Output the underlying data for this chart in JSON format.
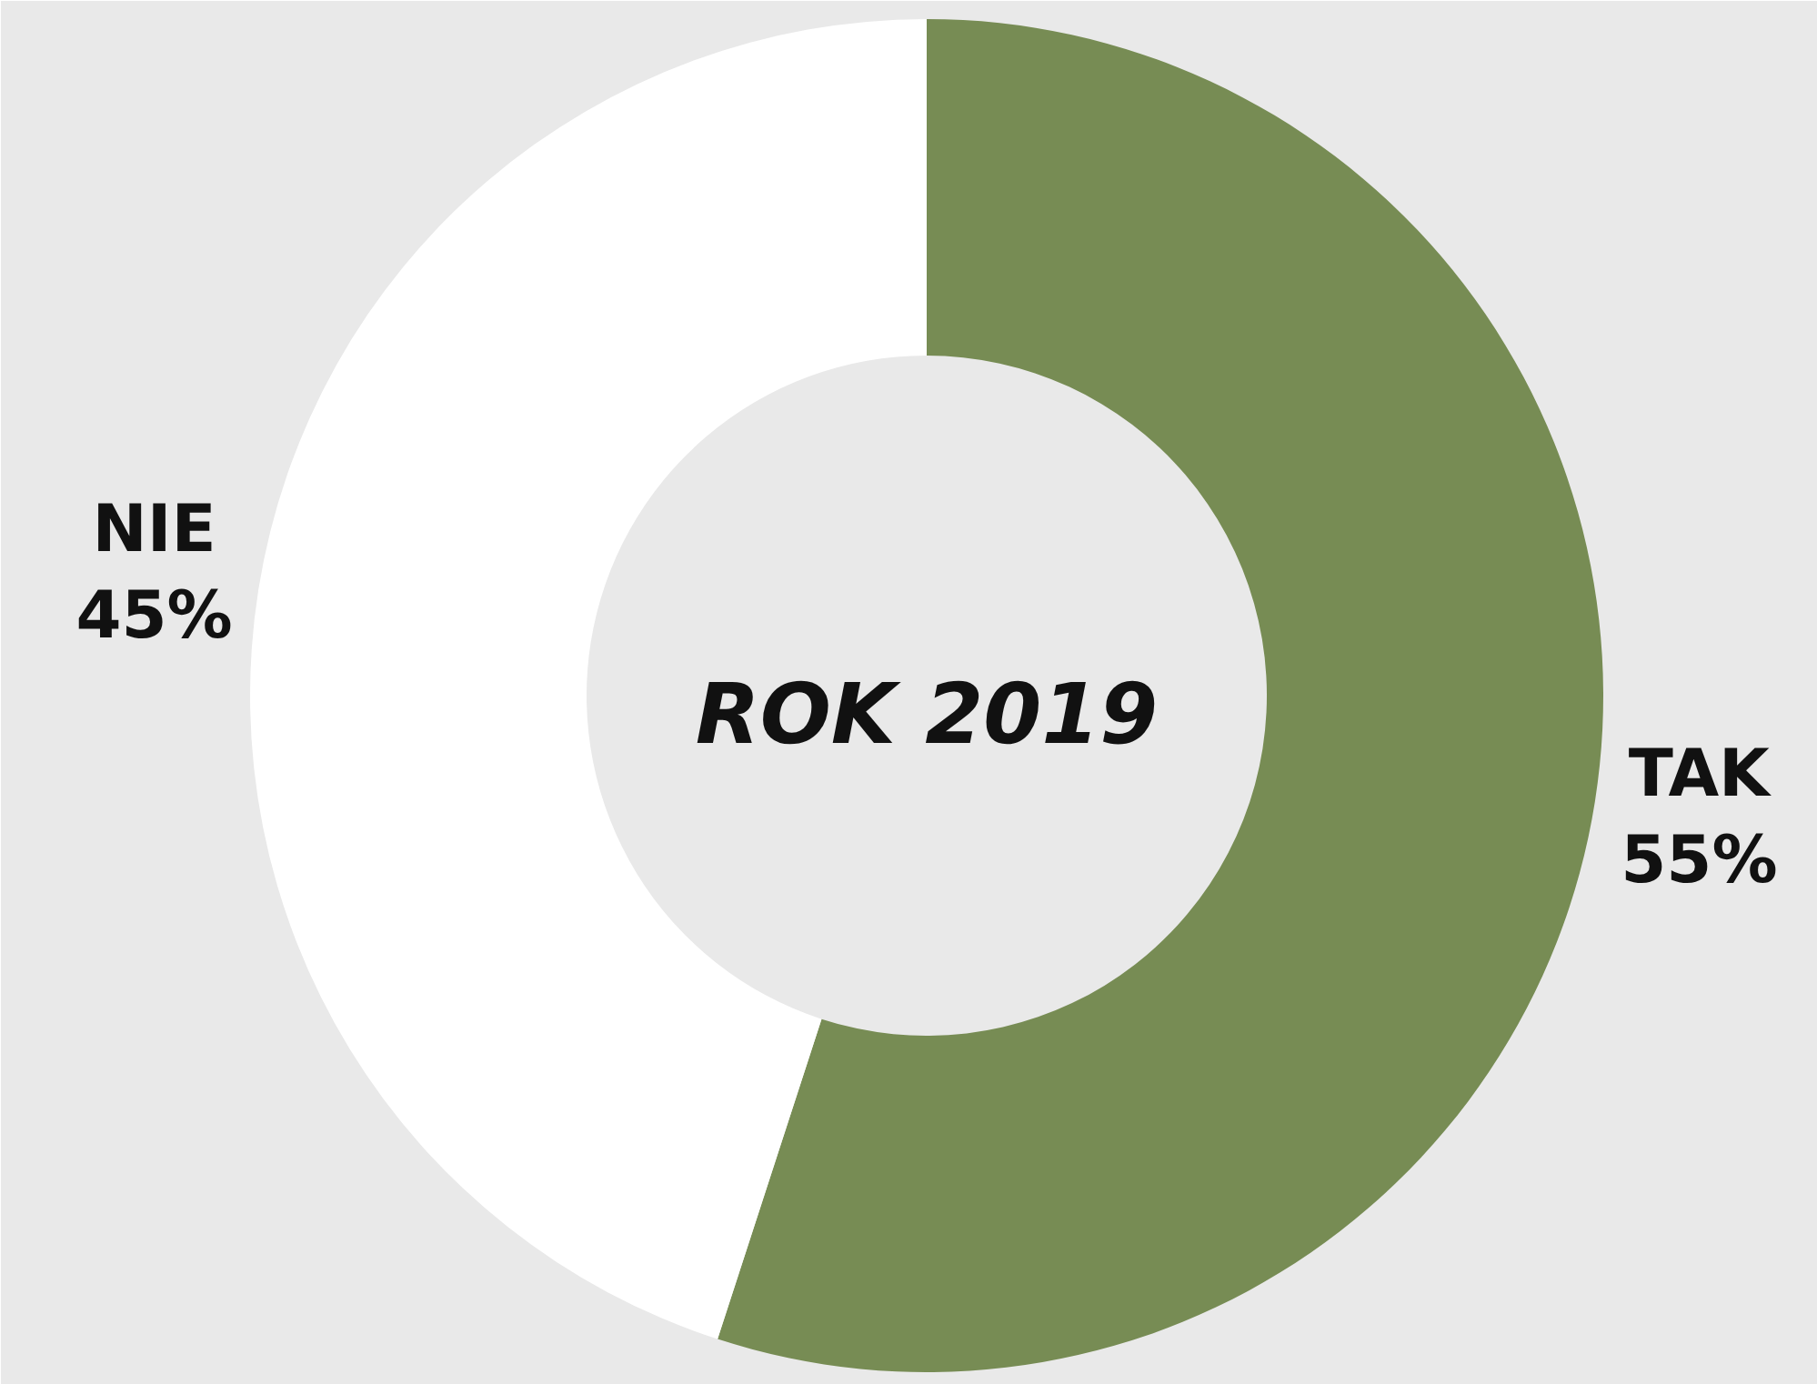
{
  "chart_data": {
    "type": "donut",
    "title": "ROK 2019",
    "categories": [
      "TAK",
      "NIE"
    ],
    "values": [
      55,
      45
    ],
    "colors": [
      "#778c54",
      "#ffffff"
    ],
    "value_labels": [
      "55%",
      "45%"
    ]
  }
}
